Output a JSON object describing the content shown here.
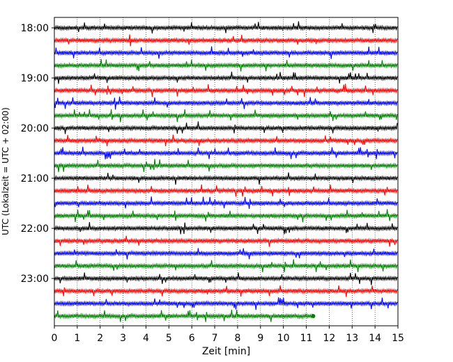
{
  "chart_data": {
    "type": "line",
    "title": "",
    "xlabel": "Zeit  [min]",
    "ylabel": "UTC (Lokalzeit = UTC + 02:00)",
    "xlim": [
      0,
      15
    ],
    "x_ticks": [
      0,
      1,
      2,
      3,
      4,
      5,
      6,
      7,
      8,
      9,
      10,
      11,
      12,
      13,
      14,
      15
    ],
    "x_tick_labels": [
      "0",
      "1",
      "2",
      "3",
      "4",
      "5",
      "6",
      "7",
      "8",
      "9",
      "10",
      "11",
      "12",
      "13",
      "14",
      "15"
    ],
    "y_tick_labels": [
      "18:00",
      "19:00",
      "20:00",
      "21:00",
      "22:00",
      "23:00"
    ],
    "y_tick_rows": [
      0,
      4,
      8,
      12,
      16,
      20
    ],
    "grid": "vertical-dotted",
    "line_colors": [
      "#000000",
      "#ff0000",
      "#0000ff",
      "#008000"
    ],
    "series": [
      {
        "start": "18:00",
        "end_min": 15
      },
      {
        "start": "18:15",
        "end_min": 15
      },
      {
        "start": "18:30",
        "end_min": 15
      },
      {
        "start": "18:45",
        "end_min": 15
      },
      {
        "start": "19:00",
        "end_min": 15
      },
      {
        "start": "19:15",
        "end_min": 15
      },
      {
        "start": "19:30",
        "end_min": 15
      },
      {
        "start": "19:45",
        "end_min": 15
      },
      {
        "start": "20:00",
        "end_min": 15
      },
      {
        "start": "20:15",
        "end_min": 15
      },
      {
        "start": "20:30",
        "end_min": 15
      },
      {
        "start": "20:45",
        "end_min": 15
      },
      {
        "start": "21:00",
        "end_min": 15
      },
      {
        "start": "21:15",
        "end_min": 15
      },
      {
        "start": "21:30",
        "end_min": 15
      },
      {
        "start": "21:45",
        "end_min": 15
      },
      {
        "start": "22:00",
        "end_min": 15
      },
      {
        "start": "22:15",
        "end_min": 15
      },
      {
        "start": "22:30",
        "end_min": 15
      },
      {
        "start": "22:45",
        "end_min": 15
      },
      {
        "start": "23:00",
        "end_min": 15
      },
      {
        "start": "23:15",
        "end_min": 15
      },
      {
        "start": "23:30",
        "end_min": 15
      },
      {
        "start": "23:45",
        "end_min": 11.3
      }
    ]
  }
}
